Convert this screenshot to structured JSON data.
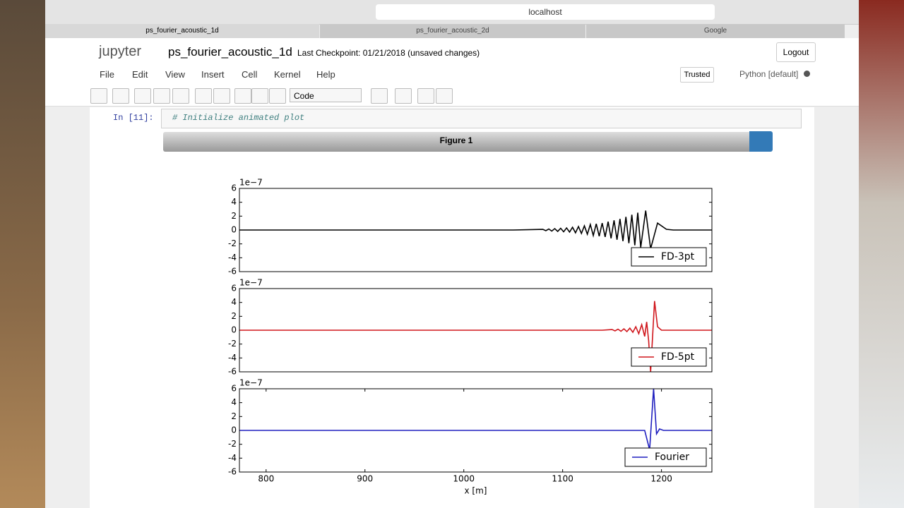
{
  "browser": {
    "address": "localhost",
    "tabs": [
      "ps_fourier_acoustic_1d",
      "ps_fourier_acoustic_2d",
      "Google"
    ]
  },
  "notebook": {
    "logo": "jupyter",
    "name": "ps_fourier_acoustic_1d",
    "checkpoint": "Last Checkpoint: 01/21/2018 (unsaved changes)",
    "logout": "Logout",
    "menu": [
      "File",
      "Edit",
      "View",
      "Insert",
      "Cell",
      "Kernel",
      "Help"
    ],
    "trusted": "Trusted",
    "kernel": "Python [default]",
    "cell_type": "Code"
  },
  "cell": {
    "prompt": "In [11]:",
    "code": "# Initialize animated plot"
  },
  "figure": {
    "title": "Figure 1"
  },
  "chart_data": [
    {
      "type": "line",
      "x": [
        773,
        1050,
        1080,
        1083,
        1086,
        1089,
        1092,
        1095,
        1098,
        1101,
        1104,
        1107,
        1110,
        1113,
        1116,
        1119,
        1122,
        1125,
        1128,
        1131,
        1134,
        1137,
        1140,
        1143,
        1146,
        1149,
        1152,
        1155,
        1158,
        1161,
        1164,
        1167,
        1170,
        1173,
        1176,
        1179,
        1184,
        1189,
        1196,
        1205,
        1212,
        1251
      ],
      "series": [
        {
          "name": "FD-3pt",
          "color": "#000000",
          "values": [
            0,
            0,
            0.1,
            -0.1,
            0.15,
            -0.15,
            0.2,
            -0.2,
            0.25,
            -0.25,
            0.3,
            -0.3,
            0.4,
            -0.4,
            0.5,
            -0.5,
            0.6,
            -0.6,
            0.8,
            -0.8,
            0.9,
            -0.9,
            1.0,
            -1.0,
            1.2,
            -1.2,
            1.4,
            -1.4,
            1.6,
            -1.6,
            1.9,
            -1.9,
            2.2,
            -2.2,
            2.5,
            -2.5,
            2.8,
            -2.7,
            1.0,
            0.1,
            0,
            0
          ]
        }
      ],
      "xlim": [
        773,
        1251
      ],
      "ylim": [
        -6,
        6
      ],
      "yticks": [
        -6,
        -4,
        -2,
        0,
        2,
        4,
        6
      ],
      "offset_label": "1e−7",
      "legend": "lower right"
    },
    {
      "type": "line",
      "x": [
        773,
        1140,
        1150,
        1153,
        1156,
        1159,
        1162,
        1165,
        1168,
        1171,
        1174,
        1177,
        1180,
        1183,
        1185,
        1187,
        1189,
        1193,
        1196,
        1200,
        1251
      ],
      "series": [
        {
          "name": "FD-5pt",
          "color": "#d0161c",
          "values": [
            0,
            0,
            0.1,
            -0.1,
            0.15,
            -0.15,
            0.2,
            -0.2,
            0.3,
            -0.3,
            0.5,
            -0.5,
            0.8,
            -0.9,
            1.2,
            -1.5,
            -6,
            4.2,
            0.5,
            0,
            0
          ]
        }
      ],
      "xlim": [
        773,
        1251
      ],
      "ylim": [
        -6,
        6
      ],
      "yticks": [
        -6,
        -4,
        -2,
        0,
        2,
        4,
        6
      ],
      "offset_label": "1e−7",
      "legend": "lower right"
    },
    {
      "type": "line",
      "x": [
        773,
        1183,
        1188,
        1192,
        1195,
        1198,
        1202,
        1251
      ],
      "series": [
        {
          "name": "Fourier",
          "color": "#1f1fbf",
          "values": [
            0,
            0,
            -2.8,
            6,
            -0.5,
            0.2,
            0,
            0
          ]
        }
      ],
      "xlim": [
        773,
        1251
      ],
      "ylim": [
        -6,
        6
      ],
      "yticks": [
        -6,
        -4,
        -2,
        0,
        2,
        4,
        6
      ],
      "xticks": [
        800,
        900,
        1000,
        1100,
        1200
      ],
      "xlabel": "x [m]",
      "offset_label": "1e−7",
      "legend": "lower right"
    }
  ]
}
